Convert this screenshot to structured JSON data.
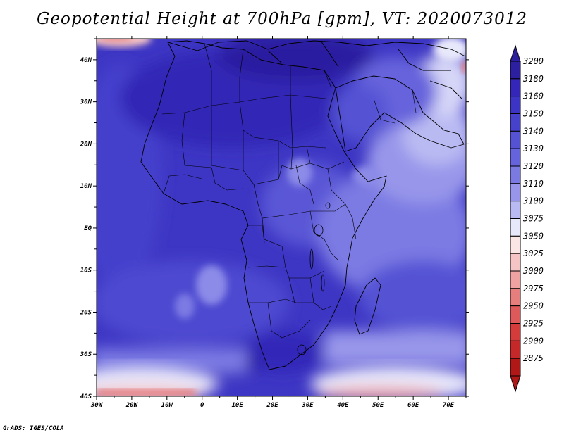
{
  "title": "Geopotential Height at 700hPa [gpm], VT: 2020073012",
  "credit": "GrADS: IGES/COLA",
  "chart_data": {
    "type": "map-contour",
    "title": "Geopotential Height at 700hPa [gpm], VT: 2020073012",
    "x_ticks": [
      "30W",
      "20W",
      "10W",
      "0",
      "10E",
      "20E",
      "30E",
      "40E",
      "50E",
      "60E",
      "70E"
    ],
    "y_ticks": [
      "40N",
      "30N",
      "20N",
      "10N",
      "EQ",
      "10S",
      "20S",
      "30S",
      "40S"
    ],
    "lon_range": [
      -30,
      75
    ],
    "lat_range": [
      -40,
      45
    ],
    "colorbar": {
      "levels": [
        "3200",
        "3180",
        "3160",
        "3150",
        "3140",
        "3130",
        "3120",
        "3110",
        "3100",
        "3075",
        "3050",
        "3025",
        "3000",
        "2975",
        "2950",
        "2925",
        "2900",
        "2875"
      ],
      "colors": [
        "#2c1fa0",
        "#3326b8",
        "#3b34c4",
        "#4742cc",
        "#5552d4",
        "#6664dc",
        "#7b7ae3",
        "#9796ea",
        "#babaf3",
        "#e8e8fb",
        "#fbe6e6",
        "#f5c4c4",
        "#eea2a2",
        "#e67e7e",
        "#de5a5a",
        "#d43c3c",
        "#c42828",
        "#b01818"
      ]
    }
  }
}
